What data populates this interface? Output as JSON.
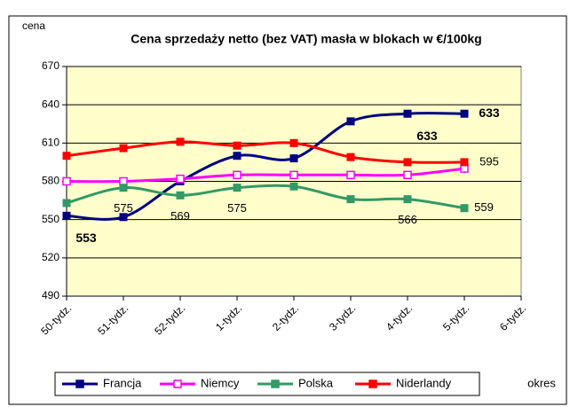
{
  "chart_data": {
    "type": "line",
    "title": "Cena sprzedaży netto (bez VAT) masła w blokach w €/100kg",
    "y_label": "cena",
    "x_label": "okres",
    "categories": [
      "50-tydz.",
      "51-tydz.",
      "52-tydz.",
      "1-tydz.",
      "2-tydz.",
      "3-tydz.",
      "4-tydz.",
      "5-tydz.",
      "6-tydz."
    ],
    "series": [
      {
        "name": "Francja",
        "color": "#000080",
        "marker": "filled",
        "values": [
          553,
          552,
          580,
          600,
          598,
          627,
          633,
          633,
          null
        ],
        "value_labels": [
          "553",
          null,
          null,
          null,
          null,
          null,
          "633",
          "633",
          null
        ]
      },
      {
        "name": "Niemcy",
        "color": "#ff00ff",
        "marker": "hollow",
        "values": [
          580,
          580,
          582,
          585,
          585,
          585,
          585,
          590,
          null
        ]
      },
      {
        "name": "Polska",
        "color": "#339966",
        "marker": "filled",
        "values": [
          563,
          575,
          569,
          575,
          576,
          566,
          566,
          559,
          null
        ],
        "value_labels": [
          null,
          "575",
          "569",
          "575",
          null,
          null,
          "566",
          "559",
          null
        ]
      },
      {
        "name": "Niderlandy",
        "color": "#ff0000",
        "marker": "filled",
        "values": [
          600,
          606,
          611,
          608,
          610,
          599,
          595,
          595,
          null
        ],
        "value_labels": [
          null,
          null,
          null,
          null,
          null,
          null,
          null,
          "595",
          null
        ]
      }
    ],
    "ylim": [
      490,
      670
    ],
    "yticks": [
      490,
      520,
      550,
      580,
      610,
      640,
      670
    ],
    "grid": true,
    "legend": "bottom",
    "plot_background": "#ffffcc"
  }
}
